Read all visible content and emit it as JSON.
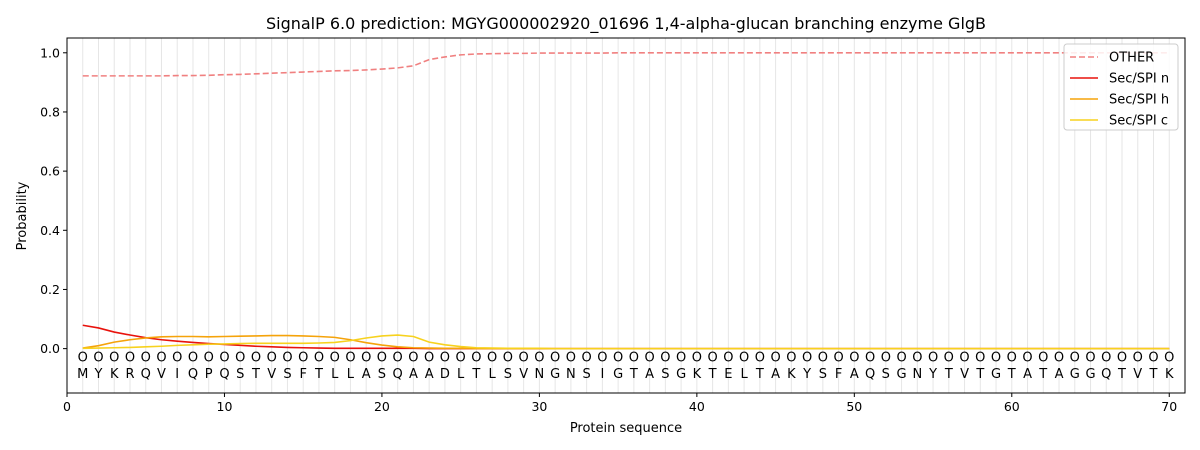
{
  "chart_data": {
    "type": "line",
    "title": "SignalP 6.0 prediction: MGYG000002920_01696 1,4-alpha-glucan branching enzyme GlgB",
    "xlabel": "Protein sequence",
    "ylabel": "Probability",
    "xlim": [
      0,
      71
    ],
    "ylim": [
      -0.15,
      1.05
    ],
    "xticks": [
      0,
      10,
      20,
      30,
      40,
      50,
      60,
      70
    ],
    "yticks": [
      0.0,
      0.2,
      0.4,
      0.6,
      0.8,
      1.0
    ],
    "grid": "vertical lines at each residue",
    "legend_position": "top-right",
    "sequence": [
      "M",
      "Y",
      "K",
      "R",
      "Q",
      "V",
      "I",
      "Q",
      "P",
      "Q",
      "S",
      "T",
      "V",
      "S",
      "F",
      "T",
      "L",
      "L",
      "A",
      "S",
      "Q",
      "A",
      "A",
      "D",
      "L",
      "T",
      "L",
      "S",
      "V",
      "N",
      "G",
      "N",
      "S",
      "I",
      "G",
      "T",
      "A",
      "S",
      "G",
      "K",
      "T",
      "E",
      "L",
      "T",
      "A",
      "K",
      "Y",
      "S",
      "F",
      "A",
      "Q",
      "S",
      "G",
      "N",
      "Y",
      "T",
      "V",
      "T",
      "G",
      "T",
      "A",
      "T",
      "A",
      "G",
      "G",
      "Q",
      "T",
      "V",
      "T",
      "K"
    ],
    "region_marker": "O",
    "x": [
      1,
      2,
      3,
      4,
      5,
      6,
      7,
      8,
      9,
      10,
      11,
      12,
      13,
      14,
      15,
      16,
      17,
      18,
      19,
      20,
      21,
      22,
      23,
      24,
      25,
      26,
      27,
      28,
      29,
      30,
      31,
      32,
      33,
      34,
      35,
      36,
      37,
      38,
      39,
      40,
      41,
      42,
      43,
      44,
      45,
      46,
      47,
      48,
      49,
      50,
      51,
      52,
      53,
      54,
      55,
      56,
      57,
      58,
      59,
      60,
      61,
      62,
      63,
      64,
      65,
      66,
      67,
      68,
      69,
      70
    ],
    "series": [
      {
        "name": "OTHER",
        "color": "#f08080",
        "dash": "dashed",
        "values": [
          0.922,
          0.922,
          0.922,
          0.922,
          0.922,
          0.922,
          0.923,
          0.923,
          0.924,
          0.926,
          0.927,
          0.929,
          0.931,
          0.933,
          0.935,
          0.937,
          0.939,
          0.94,
          0.942,
          0.945,
          0.949,
          0.956,
          0.977,
          0.986,
          0.993,
          0.996,
          0.997,
          0.998,
          0.998,
          0.999,
          0.999,
          0.999,
          0.999,
          0.999,
          1.0,
          1.0,
          1.0,
          1.0,
          1.0,
          1.0,
          1.0,
          1.0,
          1.0,
          1.0,
          1.0,
          1.0,
          1.0,
          1.0,
          1.0,
          1.0,
          1.0,
          1.0,
          1.0,
          1.0,
          1.0,
          1.0,
          1.0,
          1.0,
          1.0,
          1.0,
          1.0,
          1.0,
          1.0,
          1.0,
          1.0,
          1.0,
          1.0,
          1.0,
          1.0,
          1.0
        ]
      },
      {
        "name": "Sec/SPI n",
        "color": "#e8120c",
        "dash": "solid",
        "values": [
          0.079,
          0.07,
          0.056,
          0.046,
          0.037,
          0.03,
          0.025,
          0.021,
          0.017,
          0.014,
          0.011,
          0.008,
          0.006,
          0.004,
          0.003,
          0.002,
          0.001,
          0.001,
          0.001,
          0.001,
          0.001,
          0.001,
          0.0,
          0.0,
          0.0,
          0.0,
          0.0,
          0.0,
          0.0,
          0.0,
          0.0,
          0.0,
          0.0,
          0.0,
          0.0,
          0.0,
          0.0,
          0.0,
          0.0,
          0.0,
          0.0,
          0.0,
          0.0,
          0.0,
          0.0,
          0.0,
          0.0,
          0.0,
          0.0,
          0.0,
          0.0,
          0.0,
          0.0,
          0.0,
          0.0,
          0.0,
          0.0,
          0.0,
          0.0,
          0.0,
          0.0,
          0.0,
          0.0,
          0.0,
          0.0,
          0.0,
          0.0,
          0.0,
          0.0,
          0.0
        ]
      },
      {
        "name": "Sec/SPI h",
        "color": "#f5a30a",
        "dash": "solid",
        "values": [
          0.002,
          0.01,
          0.022,
          0.03,
          0.036,
          0.04,
          0.041,
          0.041,
          0.04,
          0.041,
          0.042,
          0.043,
          0.044,
          0.044,
          0.043,
          0.041,
          0.038,
          0.03,
          0.02,
          0.012,
          0.006,
          0.003,
          0.002,
          0.001,
          0.001,
          0.0,
          0.0,
          0.0,
          0.0,
          0.0,
          0.0,
          0.0,
          0.0,
          0.0,
          0.0,
          0.0,
          0.0,
          0.0,
          0.0,
          0.0,
          0.0,
          0.0,
          0.0,
          0.0,
          0.0,
          0.0,
          0.0,
          0.0,
          0.0,
          0.0,
          0.0,
          0.0,
          0.0,
          0.0,
          0.0,
          0.0,
          0.0,
          0.0,
          0.0,
          0.0,
          0.0,
          0.0,
          0.0,
          0.0,
          0.0,
          0.0,
          0.0,
          0.0,
          0.0,
          0.0
        ]
      },
      {
        "name": "Sec/SPI c",
        "color": "#f7d21e",
        "dash": "solid",
        "values": [
          0.001,
          0.002,
          0.003,
          0.004,
          0.006,
          0.008,
          0.011,
          0.013,
          0.015,
          0.016,
          0.017,
          0.018,
          0.018,
          0.018,
          0.018,
          0.019,
          0.021,
          0.027,
          0.036,
          0.043,
          0.046,
          0.041,
          0.022,
          0.013,
          0.007,
          0.003,
          0.002,
          0.001,
          0.001,
          0.001,
          0.0,
          0.0,
          0.0,
          0.0,
          0.0,
          0.0,
          0.0,
          0.0,
          0.0,
          0.0,
          0.0,
          0.0,
          0.0,
          0.0,
          0.0,
          0.0,
          0.0,
          0.0,
          0.0,
          0.0,
          0.0,
          0.0,
          0.0,
          0.0,
          0.0,
          0.0,
          0.0,
          0.0,
          0.0,
          0.0,
          0.0,
          0.0,
          0.0,
          0.0,
          0.0,
          0.0,
          0.0,
          0.0,
          0.0,
          0.0
        ]
      }
    ]
  }
}
